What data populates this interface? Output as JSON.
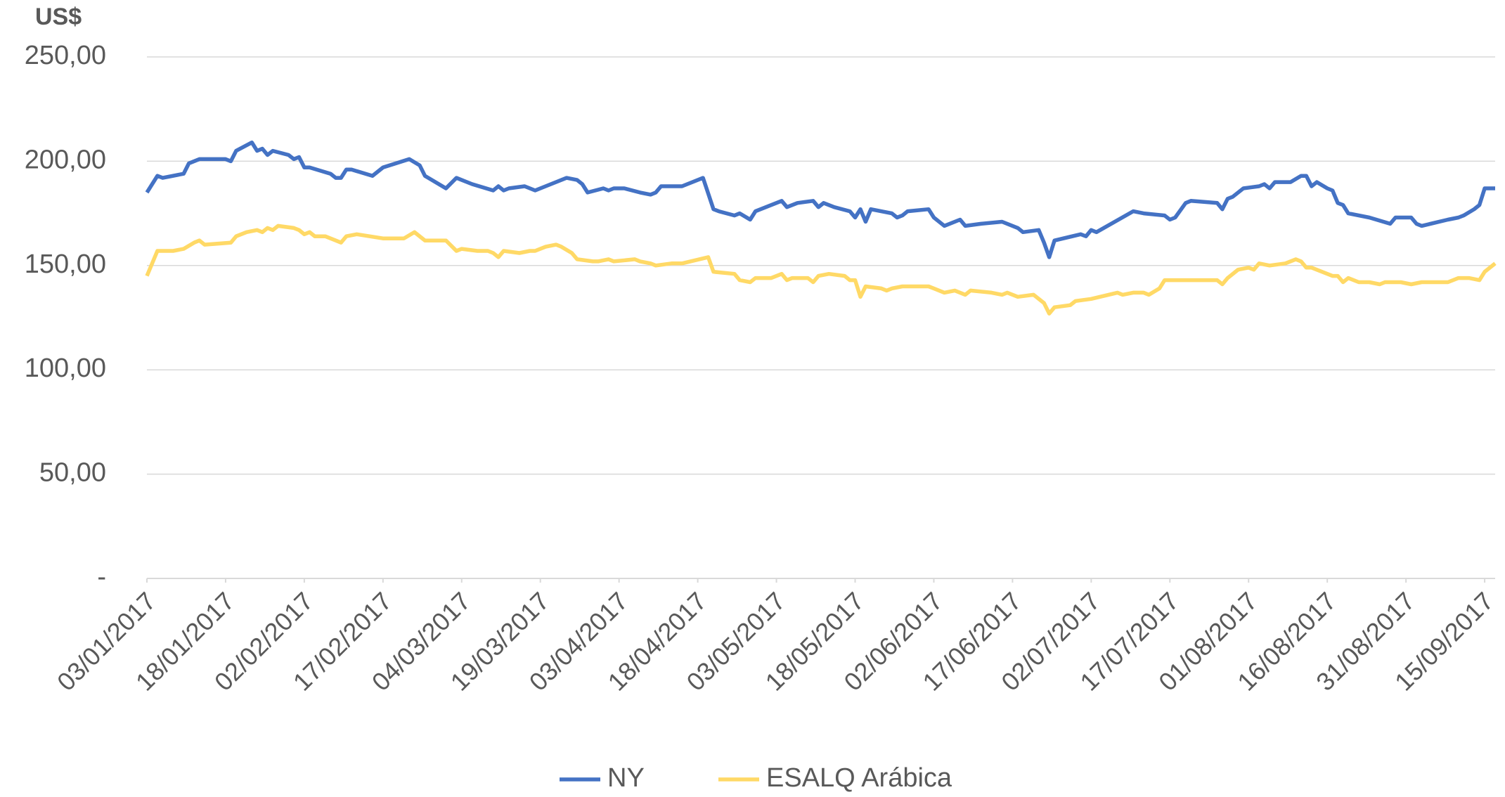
{
  "chart_data": {
    "type": "line",
    "y_label": "US$",
    "xlim": [
      "2017-01-03",
      "2017-09-17"
    ],
    "xticks": [
      {
        "value": "2017-01-03",
        "label": "03/01/2017"
      },
      {
        "value": "2017-01-18",
        "label": "18/01/2017"
      },
      {
        "value": "2017-02-02",
        "label": "02/02/2017"
      },
      {
        "value": "2017-02-17",
        "label": "17/02/2017"
      },
      {
        "value": "2017-03-04",
        "label": "04/03/2017"
      },
      {
        "value": "2017-03-19",
        "label": "19/03/2017"
      },
      {
        "value": "2017-04-03",
        "label": "03/04/2017"
      },
      {
        "value": "2017-04-18",
        "label": "18/04/2017"
      },
      {
        "value": "2017-05-03",
        "label": "03/05/2017"
      },
      {
        "value": "2017-05-18",
        "label": "18/05/2017"
      },
      {
        "value": "2017-06-02",
        "label": "02/06/2017"
      },
      {
        "value": "2017-06-17",
        "label": "17/06/2017"
      },
      {
        "value": "2017-07-02",
        "label": "02/07/2017"
      },
      {
        "value": "2017-07-17",
        "label": "17/07/2017"
      },
      {
        "value": "2017-08-01",
        "label": "01/08/2017"
      },
      {
        "value": "2017-08-16",
        "label": "16/08/2017"
      },
      {
        "value": "2017-08-31",
        "label": "31/08/2017"
      },
      {
        "value": "2017-09-15",
        "label": "15/09/2017"
      }
    ],
    "ylim": [
      0,
      250
    ],
    "yticks": [
      {
        "value": 0,
        "label": "-"
      },
      {
        "value": 50,
        "label": "50,00"
      },
      {
        "value": 100,
        "label": "100,00"
      },
      {
        "value": 150,
        "label": "150,00"
      },
      {
        "value": 200,
        "label": "200,00"
      },
      {
        "value": 250,
        "label": "250,00"
      }
    ],
    "grid": true,
    "legend": "bottom",
    "series": [
      {
        "name": "NY",
        "color": "#4472c4",
        "x": [
          "2017-01-03",
          "2017-01-05",
          "2017-01-06",
          "2017-01-10",
          "2017-01-11",
          "2017-01-13",
          "2017-01-18",
          "2017-01-19",
          "2017-01-20",
          "2017-01-23",
          "2017-01-24",
          "2017-01-25",
          "2017-01-26",
          "2017-01-27",
          "2017-01-30",
          "2017-01-31",
          "2017-02-01",
          "2017-02-02",
          "2017-02-03",
          "2017-02-07",
          "2017-02-08",
          "2017-02-09",
          "2017-02-10",
          "2017-02-11",
          "2017-02-15",
          "2017-02-17",
          "2017-02-22",
          "2017-02-24",
          "2017-02-25",
          "2017-03-01",
          "2017-03-03",
          "2017-03-04",
          "2017-03-06",
          "2017-03-10",
          "2017-03-11",
          "2017-03-12",
          "2017-03-13",
          "2017-03-16",
          "2017-03-18",
          "2017-03-20",
          "2017-03-24",
          "2017-03-26",
          "2017-03-27",
          "2017-03-28",
          "2017-03-31",
          "2017-04-01",
          "2017-04-02",
          "2017-04-04",
          "2017-04-07",
          "2017-04-09",
          "2017-04-10",
          "2017-04-11",
          "2017-04-15",
          "2017-04-19",
          "2017-04-21",
          "2017-04-22",
          "2017-04-25",
          "2017-04-26",
          "2017-04-28",
          "2017-04-29",
          "2017-05-04",
          "2017-05-05",
          "2017-05-07",
          "2017-05-10",
          "2017-05-11",
          "2017-05-12",
          "2017-05-14",
          "2017-05-17",
          "2017-05-18",
          "2017-05-19",
          "2017-05-20",
          "2017-05-21",
          "2017-05-25",
          "2017-05-26",
          "2017-05-27",
          "2017-05-28",
          "2017-06-01",
          "2017-06-02",
          "2017-06-04",
          "2017-06-07",
          "2017-06-08",
          "2017-06-11",
          "2017-06-15",
          "2017-06-17",
          "2017-06-18",
          "2017-06-19",
          "2017-06-22",
          "2017-06-23",
          "2017-06-24",
          "2017-06-25",
          "2017-06-30",
          "2017-07-01",
          "2017-07-02",
          "2017-07-03",
          "2017-07-10",
          "2017-07-12",
          "2017-07-16",
          "2017-07-17",
          "2017-07-18",
          "2017-07-20",
          "2017-07-21",
          "2017-07-26",
          "2017-07-27",
          "2017-07-28",
          "2017-07-29",
          "2017-07-31",
          "2017-08-03",
          "2017-08-04",
          "2017-08-05",
          "2017-08-06",
          "2017-08-09",
          "2017-08-11",
          "2017-08-12",
          "2017-08-13",
          "2017-08-14",
          "2017-08-16",
          "2017-08-17",
          "2017-08-18",
          "2017-08-19",
          "2017-08-20",
          "2017-08-24",
          "2017-08-28",
          "2017-08-29",
          "2017-09-01",
          "2017-09-02",
          "2017-09-03",
          "2017-09-08",
          "2017-09-10",
          "2017-09-11",
          "2017-09-13",
          "2017-09-14",
          "2017-09-15",
          "2017-09-17"
        ],
        "values": [
          185,
          193,
          192,
          194,
          199,
          201,
          201,
          200,
          205,
          209,
          205,
          206,
          203,
          205,
          203,
          201,
          202,
          197,
          197,
          194,
          192,
          192,
          196,
          196,
          193,
          197,
          201,
          198,
          193,
          187,
          192,
          191,
          189,
          186,
          188,
          186,
          187,
          188,
          186,
          188,
          192,
          191,
          189,
          185,
          187,
          186,
          187,
          187,
          185,
          184,
          185,
          188,
          188,
          192,
          177,
          176,
          174,
          175,
          172,
          176,
          181,
          178,
          180,
          181,
          178,
          180,
          178,
          176,
          173,
          177,
          171,
          177,
          175,
          173,
          174,
          176,
          177,
          173,
          169,
          172,
          169,
          170,
          171,
          169,
          168,
          166,
          167,
          161,
          154,
          162,
          165,
          164,
          167,
          166,
          176,
          175,
          174,
          172,
          173,
          180,
          181,
          180,
          177,
          182,
          183,
          187,
          188,
          189,
          187,
          190,
          190,
          193,
          193,
          188,
          190,
          187,
          186,
          180,
          179,
          175,
          173,
          170,
          173,
          173,
          170,
          169,
          172,
          173,
          174,
          177,
          179,
          187,
          187
        ]
      },
      {
        "name": "ESALQ Arábica",
        "color": "#ffd966",
        "x": [
          "2017-01-03",
          "2017-01-05",
          "2017-01-08",
          "2017-01-10",
          "2017-01-12",
          "2017-01-13",
          "2017-01-14",
          "2017-01-19",
          "2017-01-20",
          "2017-01-22",
          "2017-01-24",
          "2017-01-25",
          "2017-01-26",
          "2017-01-27",
          "2017-01-28",
          "2017-01-31",
          "2017-02-01",
          "2017-02-02",
          "2017-02-03",
          "2017-02-04",
          "2017-02-06",
          "2017-02-08",
          "2017-02-09",
          "2017-02-10",
          "2017-02-12",
          "2017-02-17",
          "2017-02-21",
          "2017-02-23",
          "2017-02-25",
          "2017-03-01",
          "2017-03-03",
          "2017-03-04",
          "2017-03-07",
          "2017-03-09",
          "2017-03-10",
          "2017-03-11",
          "2017-03-12",
          "2017-03-15",
          "2017-03-17",
          "2017-03-18",
          "2017-03-20",
          "2017-03-22",
          "2017-03-23",
          "2017-03-25",
          "2017-03-26",
          "2017-03-29",
          "2017-03-30",
          "2017-04-01",
          "2017-04-02",
          "2017-04-06",
          "2017-04-07",
          "2017-04-09",
          "2017-04-10",
          "2017-04-13",
          "2017-04-15",
          "2017-04-20",
          "2017-04-21",
          "2017-04-25",
          "2017-04-26",
          "2017-04-28",
          "2017-04-29",
          "2017-05-02",
          "2017-05-04",
          "2017-05-05",
          "2017-05-06",
          "2017-05-09",
          "2017-05-10",
          "2017-05-11",
          "2017-05-13",
          "2017-05-16",
          "2017-05-17",
          "2017-05-18",
          "2017-05-19",
          "2017-05-20",
          "2017-05-23",
          "2017-05-24",
          "2017-05-25",
          "2017-05-27",
          "2017-06-01",
          "2017-06-02",
          "2017-06-04",
          "2017-06-06",
          "2017-06-08",
          "2017-06-09",
          "2017-06-13",
          "2017-06-15",
          "2017-06-16",
          "2017-06-18",
          "2017-06-21",
          "2017-06-23",
          "2017-06-24",
          "2017-06-25",
          "2017-06-28",
          "2017-06-29",
          "2017-07-02",
          "2017-07-07",
          "2017-07-08",
          "2017-07-10",
          "2017-07-12",
          "2017-07-13",
          "2017-07-15",
          "2017-07-16",
          "2017-07-26",
          "2017-07-27",
          "2017-07-28",
          "2017-07-30",
          "2017-08-01",
          "2017-08-02",
          "2017-08-03",
          "2017-08-05",
          "2017-08-08",
          "2017-08-10",
          "2017-08-11",
          "2017-08-12",
          "2017-08-13",
          "2017-08-17",
          "2017-08-18",
          "2017-08-19",
          "2017-08-20",
          "2017-08-22",
          "2017-08-24",
          "2017-08-26",
          "2017-08-27",
          "2017-08-30",
          "2017-09-01",
          "2017-09-03",
          "2017-09-08",
          "2017-09-10",
          "2017-09-12",
          "2017-09-14",
          "2017-09-15",
          "2017-09-17"
        ],
        "values": [
          145,
          157,
          157,
          158,
          161,
          162,
          160,
          161,
          164,
          166,
          167,
          166,
          168,
          167,
          169,
          168,
          167,
          165,
          166,
          164,
          164,
          162,
          161,
          164,
          165,
          163,
          163,
          166,
          162,
          162,
          157,
          158,
          157,
          157,
          156,
          154,
          157,
          156,
          157,
          157,
          159,
          160,
          159,
          156,
          153,
          152,
          152,
          153,
          152,
          153,
          152,
          151,
          150,
          151,
          151,
          154,
          147,
          146,
          143,
          142,
          144,
          144,
          146,
          143,
          144,
          144,
          142,
          145,
          146,
          145,
          143,
          143,
          135,
          140,
          139,
          138,
          139,
          140,
          140,
          139,
          137,
          138,
          136,
          138,
          137,
          136,
          137,
          135,
          136,
          132,
          127,
          130,
          131,
          133,
          134,
          137,
          136,
          137,
          137,
          136,
          139,
          143,
          143,
          141,
          144,
          148,
          149,
          148,
          151,
          150,
          151,
          153,
          152,
          149,
          149,
          145,
          145,
          142,
          144,
          142,
          142,
          141,
          142,
          142,
          141,
          142,
          142,
          144,
          144,
          143,
          147,
          151
        ]
      }
    ]
  }
}
